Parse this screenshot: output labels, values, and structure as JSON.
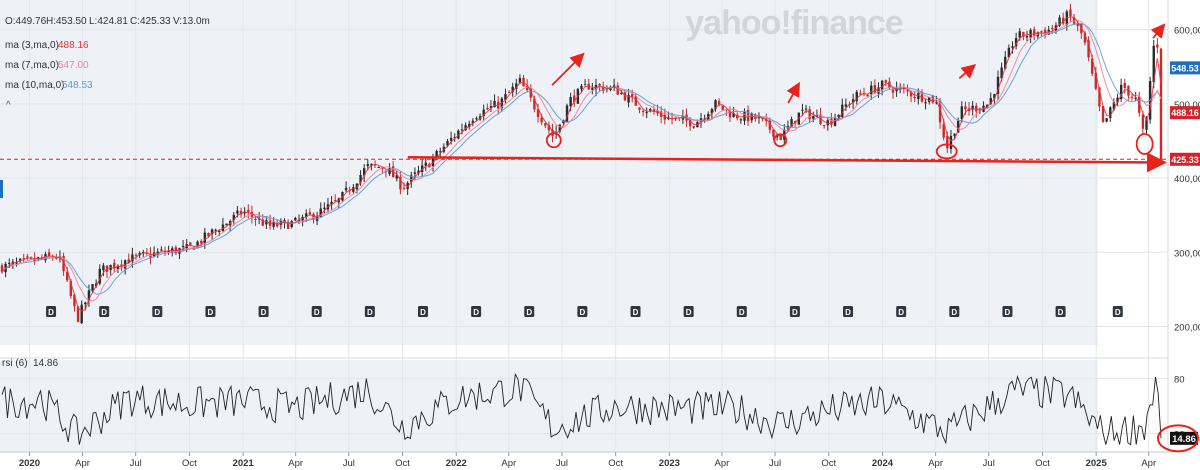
{
  "watermark": "yahoo!finance",
  "ohlc": {
    "open_label": "O:449.76",
    "high_label": "H:453.50",
    "low_label": "L:424.81",
    "close_label": "C:425.33",
    "volume_label": "V:13.0m"
  },
  "legend": [
    {
      "label": "ma (3,ma,0)",
      "value": "488.16",
      "color": "#e8323c"
    },
    {
      "label": "ma (7,ma,0)",
      "value": "547.00",
      "color": "#f0829a"
    },
    {
      "label": "ma (10,ma,0)",
      "value": "548.53",
      "color": "#5b9bd5"
    }
  ],
  "rsi_label": "rsi (6)",
  "rsi_value": "14.86",
  "price_tags": [
    {
      "text": "548.53",
      "value": 548.53,
      "color": "#1f6fbf"
    },
    {
      "text": "488.16",
      "value": 488.16,
      "color": "#d6222a"
    },
    {
      "text": "425.33",
      "value": 425.33,
      "color": "#d6222a"
    }
  ],
  "dividend_marker": "D",
  "colors": {
    "candle_up": "#2b2b2b",
    "candle_down": "#c92a2a",
    "annotation": "#e8231c",
    "shade": "#eef1f6",
    "rsi_line": "#222222",
    "grid": "#e3e6ea"
  },
  "chart_data": {
    "type": "line",
    "title": "",
    "xlabel": "",
    "ylabel": "",
    "price_axis": {
      "ticks": [
        200,
        300,
        400,
        500,
        600
      ],
      "tick_labels": [
        "200,00",
        "300,00",
        "400,00",
        "500,00",
        "600,00"
      ],
      "ylim": [
        175,
        640
      ]
    },
    "rsi_axis": {
      "ticks": [
        80,
        20
      ],
      "tick_labels": [
        "80",
        "20"
      ],
      "ylim": [
        0,
        100
      ]
    },
    "time_axis": {
      "ticks": [
        "2020",
        "Apr",
        "Jul",
        "Oct",
        "2021",
        "Apr",
        "Jul",
        "Oct",
        "2022",
        "Apr",
        "Jul",
        "Oct",
        "2023",
        "Apr",
        "Jul",
        "Oct",
        "2024",
        "Apr",
        "Jul",
        "Oct",
        "2025",
        "Apr"
      ],
      "tick_dates": [
        "2020-01-01",
        "2020-04-01",
        "2020-07-01",
        "2020-10-01",
        "2021-01-01",
        "2021-04-01",
        "2021-07-01",
        "2021-10-01",
        "2022-01-01",
        "2022-04-01",
        "2022-07-01",
        "2022-10-01",
        "2023-01-01",
        "2023-04-01",
        "2023-07-01",
        "2023-10-01",
        "2024-01-01",
        "2024-04-01",
        "2024-07-01",
        "2024-10-01",
        "2025-01-01",
        "2025-04-01"
      ]
    },
    "price_series": {
      "name": "Price",
      "dates": [
        "2019-11-15",
        "2020-01-15",
        "2020-02-20",
        "2020-03-23",
        "2020-05-01",
        "2020-06-15",
        "2020-08-15",
        "2020-10-01",
        "2020-11-15",
        "2021-01-01",
        "2021-02-15",
        "2021-04-01",
        "2021-05-15",
        "2021-06-15",
        "2021-08-01",
        "2021-09-01",
        "2021-10-01",
        "2021-11-15",
        "2022-01-01",
        "2022-02-01",
        "2022-03-15",
        "2022-04-20",
        "2022-05-20",
        "2022-06-17",
        "2022-07-15",
        "2022-08-15",
        "2022-09-30",
        "2022-11-15",
        "2023-01-01",
        "2023-02-15",
        "2023-03-20",
        "2023-04-20",
        "2023-06-01",
        "2023-07-10",
        "2023-08-15",
        "2023-10-01",
        "2023-11-15",
        "2024-01-01",
        "2024-02-15",
        "2024-04-01",
        "2024-04-20",
        "2024-05-15",
        "2024-07-01",
        "2024-08-15",
        "2024-10-15",
        "2024-11-15",
        "2024-12-10",
        "2025-01-13",
        "2025-02-15",
        "2025-03-10",
        "2025-03-25",
        "2025-04-08",
        "2025-04-15",
        "2025-04-22"
      ],
      "values": [
        280,
        290,
        295,
        210,
        275,
        290,
        300,
        305,
        330,
        355,
        335,
        340,
        355,
        370,
        415,
        415,
        388,
        420,
        460,
        485,
        500,
        530,
        490,
        455,
        505,
        525,
        520,
        495,
        480,
        475,
        500,
        485,
        480,
        455,
        490,
        475,
        510,
        525,
        515,
        505,
        440,
        490,
        500,
        590,
        600,
        620,
        590,
        470,
        525,
        505,
        450,
        570,
        600,
        425
      ]
    },
    "rsi_series": {
      "name": "rsi (6)",
      "last_value": 14.86,
      "dates": [
        "2020-01-15",
        "2020-03-23",
        "2020-06-15",
        "2020-10-01",
        "2021-01-01",
        "2021-04-01",
        "2021-08-01",
        "2021-10-01",
        "2022-01-01",
        "2022-04-20",
        "2022-06-17",
        "2022-09-30",
        "2023-01-01",
        "2023-04-20",
        "2023-07-10",
        "2023-10-01",
        "2024-01-01",
        "2024-04-20",
        "2024-08-15",
        "2024-11-15",
        "2025-01-13",
        "2025-03-25",
        "2025-04-15",
        "2025-04-22"
      ],
      "values": [
        62,
        18,
        58,
        52,
        55,
        48,
        68,
        28,
        58,
        70,
        26,
        50,
        47,
        48,
        30,
        45,
        55,
        22,
        67,
        62,
        20,
        28,
        80,
        14.86
      ]
    },
    "moving_averages": [
      {
        "name": "ma (3,ma,0)",
        "last_value": 488.16
      },
      {
        "name": "ma (7,ma,0)",
        "last_value": 547.0
      },
      {
        "name": "ma (10,ma,0)",
        "last_value": 548.53
      }
    ],
    "support_level": 425.33,
    "dividend_dates": [
      "2020-02-07",
      "2020-05-08",
      "2020-08-07",
      "2020-11-06",
      "2021-02-05",
      "2021-05-07",
      "2021-08-06",
      "2021-11-05",
      "2022-02-04",
      "2022-05-06",
      "2022-08-05",
      "2022-11-04",
      "2023-02-03",
      "2023-05-05",
      "2023-08-04",
      "2023-11-03",
      "2024-02-02",
      "2024-05-03",
      "2024-08-02",
      "2024-11-01",
      "2025-02-07",
      "2025-05-02"
    ],
    "annotations": {
      "circled_lows": [
        "2022-06-17",
        "2023-07-10",
        "2024-04-20",
        "2025-03-25"
      ],
      "arrows_after": [
        "2022-07-15",
        "2023-07-20",
        "2024-05-15",
        "2025-04-05"
      ]
    },
    "grid": true,
    "legend_position": "top-left"
  }
}
